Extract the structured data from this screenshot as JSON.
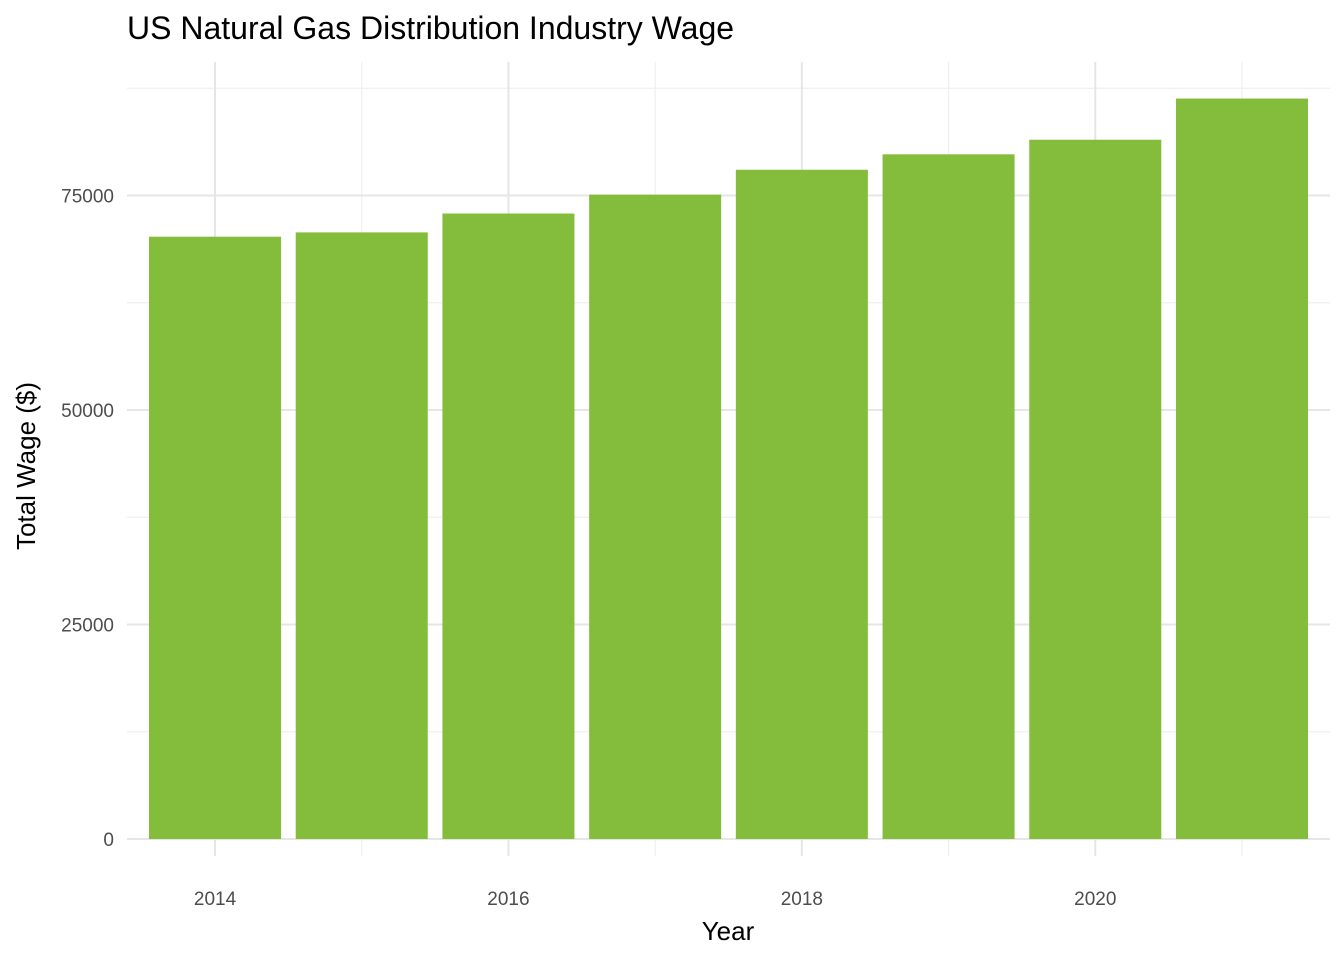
{
  "chart_data": {
    "type": "bar",
    "title": "US Natural Gas Distribution Industry Wage",
    "xlabel": "Year",
    "ylabel": "Total Wage ($)",
    "categories": [
      "2014",
      "2015",
      "2016",
      "2017",
      "2018",
      "2019",
      "2020",
      "2021"
    ],
    "x": [
      2014,
      2015,
      2016,
      2017,
      2018,
      2019,
      2020,
      2021
    ],
    "values": [
      70200,
      70700,
      72900,
      75100,
      78000,
      79800,
      81500,
      86300
    ],
    "xlim": [
      2013.4,
      2021.6
    ],
    "ylim": [
      0,
      87500
    ],
    "x_ticks": [
      2014,
      2016,
      2018,
      2020
    ],
    "x_tick_labels": [
      "2014",
      "2016",
      "2018",
      "2020"
    ],
    "y_ticks": [
      0,
      25000,
      50000,
      75000
    ],
    "y_tick_labels": [
      "0",
      "25000",
      "50000",
      "75000"
    ],
    "grid": true,
    "legend": "none",
    "bar_color": "#84bd3c"
  }
}
